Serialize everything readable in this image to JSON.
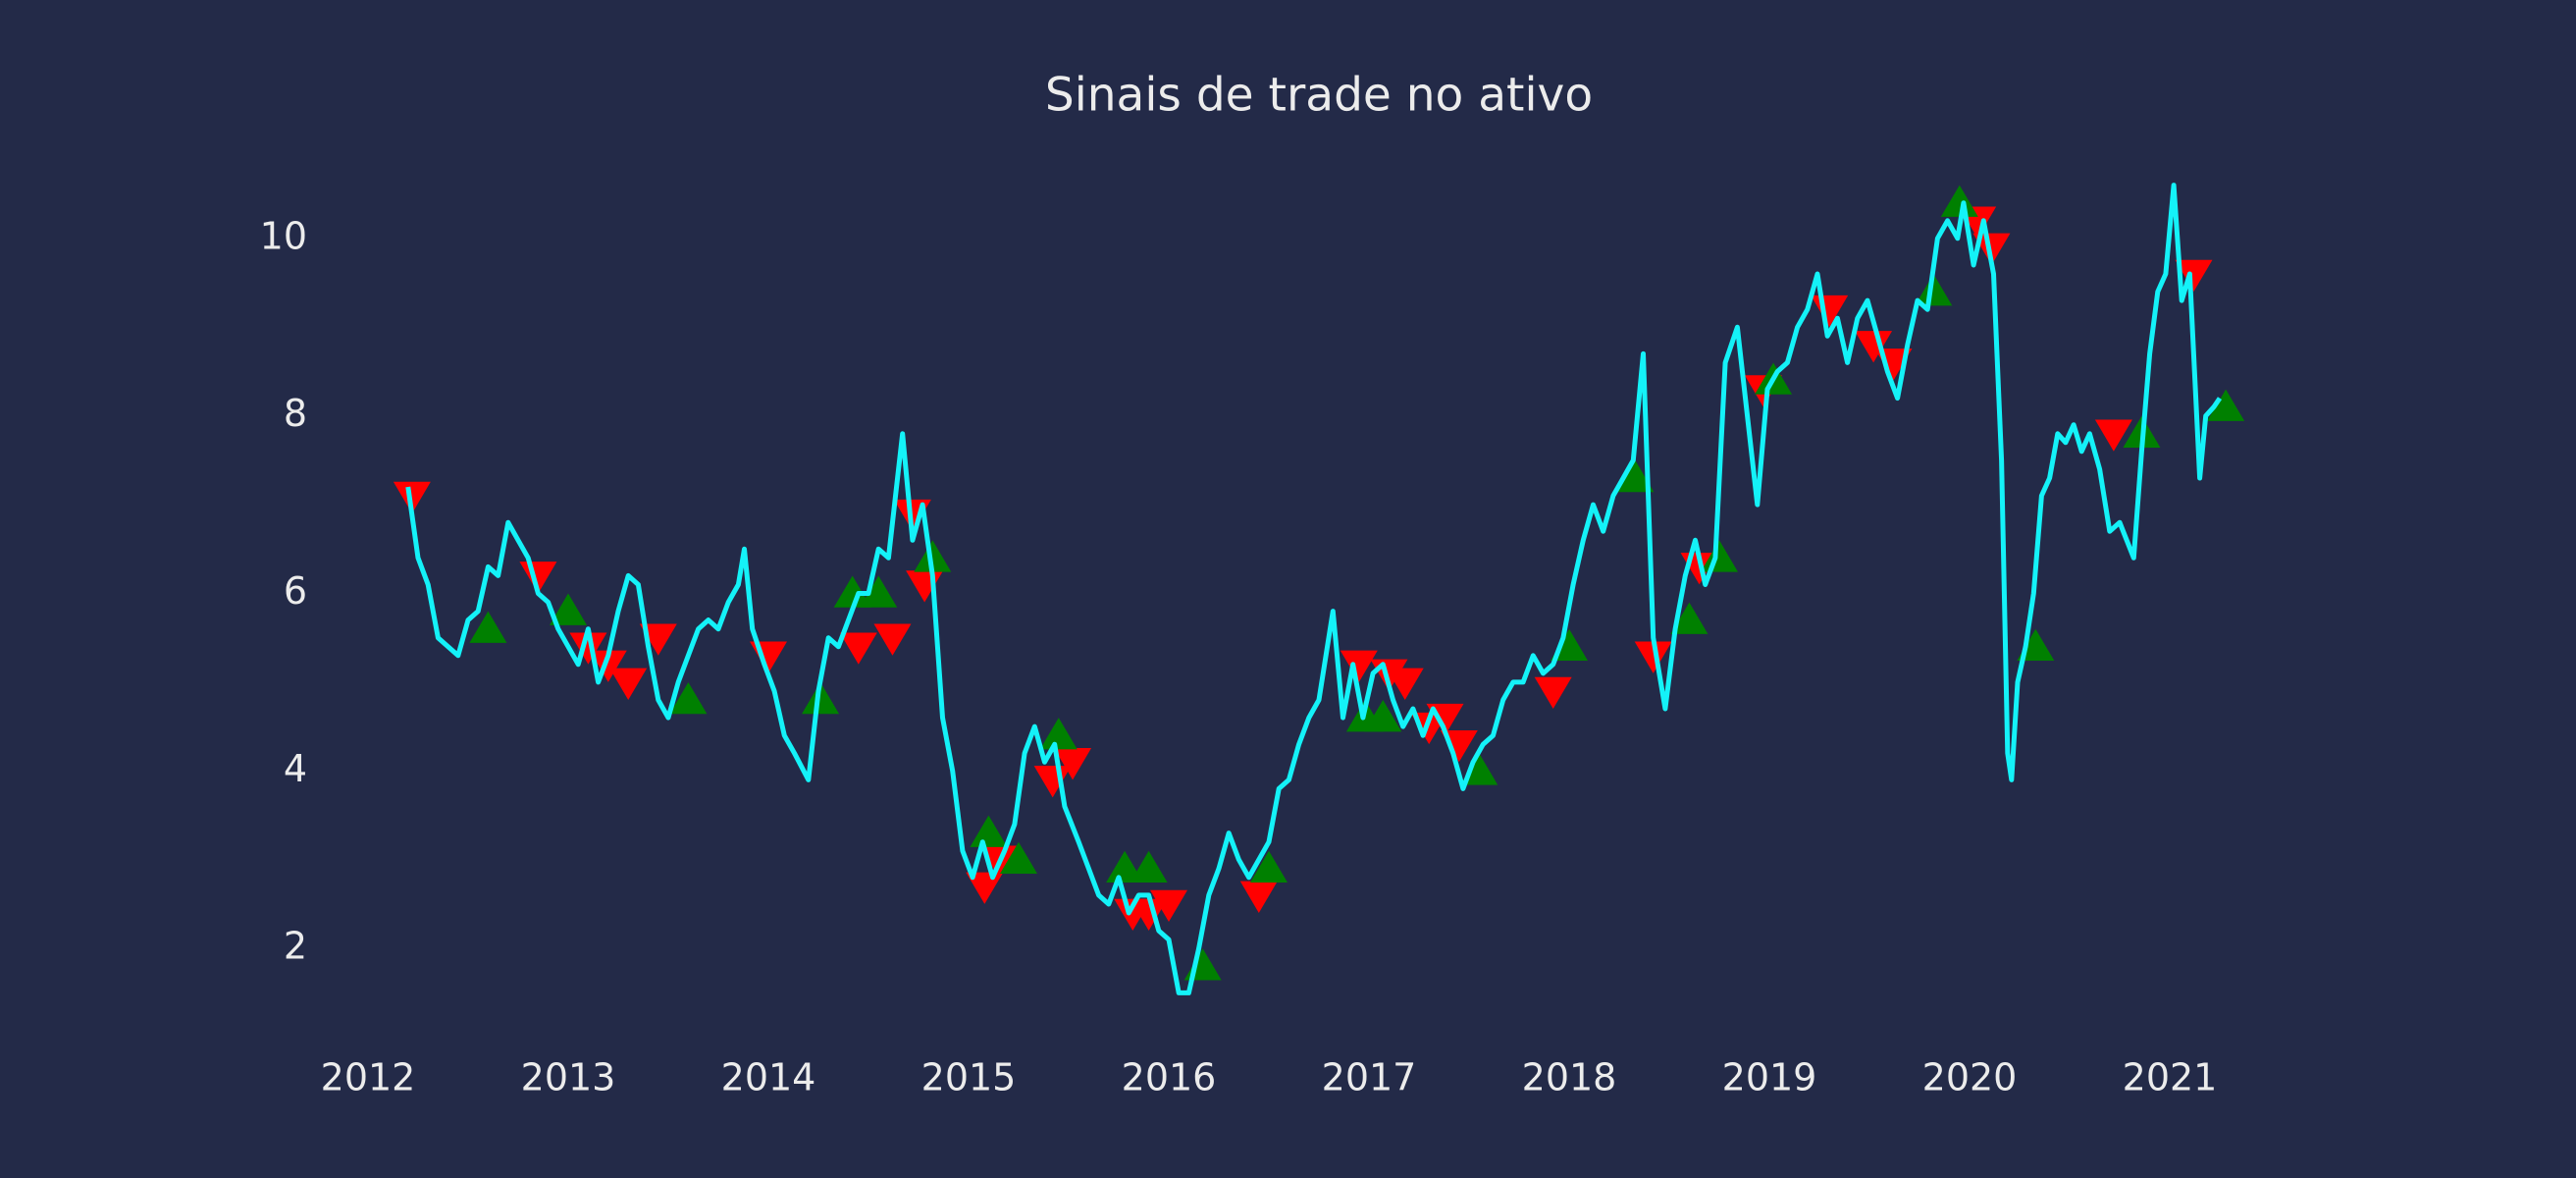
{
  "chart_data": {
    "type": "line",
    "title": "Sinais de trade no ativo",
    "color": "#14f2f8",
    "background": "#232a48",
    "xlim": [
      2011.75,
      2021.75
    ],
    "ylim": [
      0.94,
      11.06
    ],
    "xticks": [
      2012,
      2013,
      2014,
      2015,
      2016,
      2017,
      2018,
      2019,
      2020,
      2021
    ],
    "yticks": [
      2,
      4,
      6,
      8,
      10
    ],
    "grid": false,
    "x": [
      2012.2,
      2012.25,
      2012.3,
      2012.35,
      2012.4,
      2012.45,
      2012.5,
      2012.55,
      2012.6,
      2012.65,
      2012.7,
      2012.75,
      2012.8,
      2012.85,
      2012.9,
      2012.95,
      2013.0,
      2013.05,
      2013.1,
      2013.15,
      2013.2,
      2013.25,
      2013.3,
      2013.35,
      2013.4,
      2013.45,
      2013.5,
      2013.55,
      2013.6,
      2013.65,
      2013.7,
      2013.75,
      2013.8,
      2013.85,
      2013.88,
      2013.92,
      2013.98,
      2014.03,
      2014.08,
      2014.13,
      2014.2,
      2014.25,
      2014.3,
      2014.35,
      2014.4,
      2014.45,
      2014.5,
      2014.55,
      2014.6,
      2014.67,
      2014.72,
      2014.77,
      2014.82,
      2014.87,
      2014.92,
      2014.97,
      2015.02,
      2015.07,
      2015.12,
      2015.18,
      2015.23,
      2015.28,
      2015.33,
      2015.38,
      2015.43,
      2015.48,
      2015.55,
      2015.6,
      2015.65,
      2015.7,
      2015.75,
      2015.8,
      2015.85,
      2015.9,
      2015.95,
      2016.0,
      2016.05,
      2016.1,
      2016.15,
      2016.2,
      2016.25,
      2016.3,
      2016.35,
      2016.4,
      2016.45,
      2016.5,
      2016.55,
      2016.6,
      2016.65,
      2016.7,
      2016.75,
      2016.82,
      2016.87,
      2016.92,
      2016.97,
      2017.02,
      2017.07,
      2017.12,
      2017.17,
      2017.22,
      2017.27,
      2017.32,
      2017.37,
      2017.42,
      2017.47,
      2017.52,
      2017.57,
      2017.62,
      2017.67,
      2017.72,
      2017.77,
      2017.82,
      2017.87,
      2017.92,
      2017.97,
      2018.02,
      2018.07,
      2018.12,
      2018.17,
      2018.22,
      2018.27,
      2018.32,
      2018.37,
      2018.42,
      2018.48,
      2018.53,
      2018.58,
      2018.63,
      2018.68,
      2018.73,
      2018.78,
      2018.84,
      2018.89,
      2018.94,
      2018.99,
      2019.04,
      2019.09,
      2019.14,
      2019.19,
      2019.24,
      2019.29,
      2019.34,
      2019.39,
      2019.44,
      2019.49,
      2019.54,
      2019.59,
      2019.64,
      2019.69,
      2019.74,
      2019.79,
      2019.84,
      2019.89,
      2019.94,
      2019.97,
      2020.02,
      2020.07,
      2020.12,
      2020.16,
      2020.19,
      2020.21,
      2020.24,
      2020.28,
      2020.32,
      2020.36,
      2020.4,
      2020.44,
      2020.48,
      2020.52,
      2020.56,
      2020.6,
      2020.65,
      2020.7,
      2020.75,
      2020.82,
      2020.86,
      2020.9,
      2020.94,
      2020.98,
      2021.02,
      2021.06,
      2021.1,
      2021.15,
      2021.18,
      2021.22,
      2021.25
    ],
    "values": [
      7.2,
      6.4,
      6.1,
      5.5,
      5.4,
      5.3,
      5.7,
      5.8,
      6.3,
      6.2,
      6.8,
      6.6,
      6.4,
      6.0,
      5.9,
      5.6,
      5.4,
      5.2,
      5.6,
      5.0,
      5.3,
      5.8,
      6.2,
      6.1,
      5.4,
      4.8,
      4.6,
      5.0,
      5.3,
      5.6,
      5.7,
      5.6,
      5.9,
      6.1,
      6.5,
      5.6,
      5.2,
      4.9,
      4.4,
      4.2,
      3.9,
      4.9,
      5.5,
      5.4,
      5.7,
      6.0,
      6.0,
      6.5,
      6.4,
      7.8,
      6.6,
      7.0,
      6.2,
      4.6,
      4.0,
      3.1,
      2.8,
      3.2,
      2.8,
      3.1,
      3.4,
      4.2,
      4.5,
      4.1,
      4.3,
      3.6,
      3.2,
      2.9,
      2.6,
      2.5,
      2.8,
      2.4,
      2.6,
      2.6,
      2.2,
      2.1,
      1.5,
      1.5,
      2.0,
      2.6,
      2.9,
      3.3,
      3.0,
      2.8,
      3.0,
      3.2,
      3.8,
      3.9,
      4.3,
      4.6,
      4.8,
      5.8,
      4.6,
      5.2,
      4.6,
      5.1,
      5.2,
      4.8,
      4.5,
      4.7,
      4.4,
      4.7,
      4.5,
      4.2,
      3.8,
      4.1,
      4.3,
      4.4,
      4.8,
      5.0,
      5.0,
      5.3,
      5.1,
      5.2,
      5.5,
      6.1,
      6.6,
      7.0,
      6.7,
      7.1,
      7.3,
      7.5,
      8.7,
      5.5,
      4.7,
      5.6,
      6.2,
      6.6,
      6.1,
      6.4,
      8.6,
      9.0,
      8.0,
      7.0,
      8.3,
      8.5,
      8.6,
      9.0,
      9.2,
      9.6,
      8.9,
      9.1,
      8.6,
      9.1,
      9.3,
      8.9,
      8.5,
      8.2,
      8.8,
      9.3,
      9.2,
      10.0,
      10.2,
      10.0,
      10.4,
      9.7,
      10.2,
      9.6,
      7.5,
      4.2,
      3.9,
      5.0,
      5.4,
      6.0,
      7.1,
      7.3,
      7.8,
      7.7,
      7.9,
      7.6,
      7.8,
      7.4,
      6.7,
      6.8,
      6.4,
      7.6,
      8.7,
      9.4,
      9.6,
      10.6,
      9.3,
      9.6,
      7.3,
      8.0,
      8.1,
      8.2
    ],
    "markers": [
      {
        "marker": "triangle-down",
        "color": "#ff0000",
        "x": [
          2012.22,
          2012.85,
          2013.1,
          2013.2,
          2013.3,
          2013.45,
          2014.0,
          2014.45,
          2014.62,
          2014.72,
          2014.78,
          2015.08,
          2015.15,
          2015.42,
          2015.52,
          2015.82,
          2015.9,
          2016.0,
          2016.45,
          2016.95,
          2017.1,
          2017.18,
          2017.3,
          2017.38,
          2017.45,
          2017.92,
          2018.42,
          2018.65,
          2018.97,
          2019.3,
          2019.52,
          2019.62,
          2020.04,
          2020.11,
          2020.72,
          2021.12
        ],
        "values": [
          7.1,
          6.2,
          5.4,
          5.2,
          5.0,
          5.5,
          5.3,
          5.4,
          5.5,
          6.9,
          6.1,
          2.7,
          3.0,
          3.9,
          4.1,
          2.4,
          2.4,
          2.5,
          2.6,
          5.2,
          5.1,
          5.0,
          4.5,
          4.6,
          4.3,
          4.9,
          5.3,
          6.3,
          8.3,
          9.2,
          8.8,
          8.6,
          10.2,
          9.9,
          7.8,
          9.6
        ]
      },
      {
        "marker": "triangle-up",
        "color": "#008000",
        "x": [
          2012.6,
          2013.0,
          2013.6,
          2014.26,
          2014.42,
          2014.55,
          2014.82,
          2015.1,
          2015.25,
          2015.45,
          2015.78,
          2015.9,
          2016.17,
          2016.5,
          2016.98,
          2017.07,
          2017.55,
          2018.0,
          2018.33,
          2018.6,
          2018.75,
          2019.02,
          2019.82,
          2019.95,
          2020.33,
          2020.86,
          2021.28
        ],
        "values": [
          5.6,
          5.8,
          4.8,
          4.8,
          6.0,
          6.0,
          6.4,
          3.3,
          3.0,
          4.4,
          2.9,
          2.9,
          1.8,
          2.9,
          4.6,
          4.6,
          4.0,
          5.4,
          7.3,
          5.7,
          6.4,
          8.4,
          9.4,
          10.4,
          5.4,
          7.8,
          8.1
        ]
      }
    ]
  }
}
